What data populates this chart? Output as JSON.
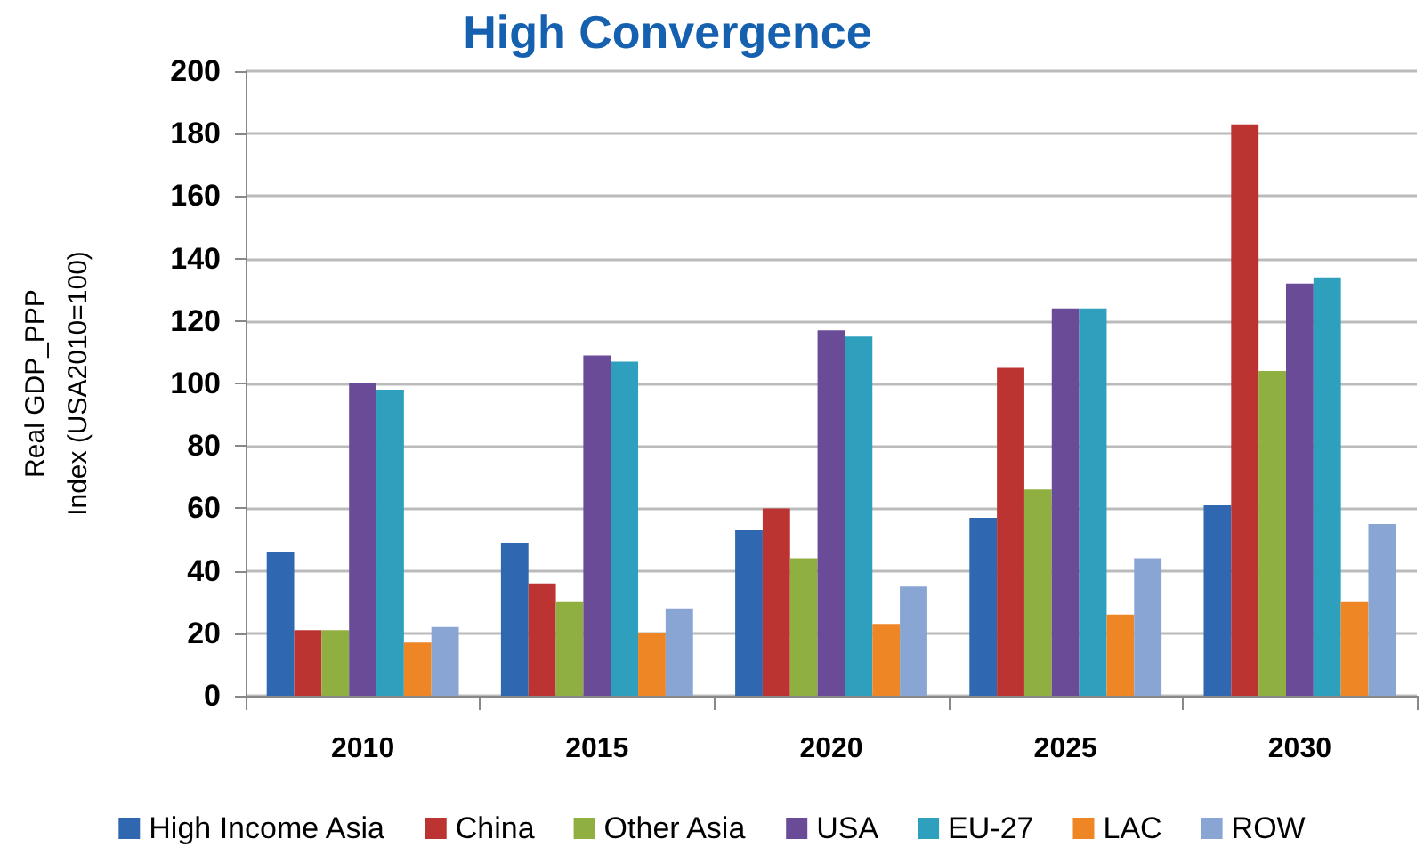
{
  "chart_data": {
    "type": "bar",
    "title": "High Convergence",
    "ylabel": "Real GDP_PPP\nIndex (USA2010=100)",
    "categories": [
      "2010",
      "2015",
      "2020",
      "2025",
      "2030"
    ],
    "series": [
      {
        "name": "High Income Asia",
        "color": "#2f67b0",
        "values": [
          46,
          49,
          53,
          57,
          61
        ]
      },
      {
        "name": "China",
        "color": "#bb3431",
        "values": [
          21,
          36,
          60,
          105,
          183
        ]
      },
      {
        "name": "Other Asia",
        "color": "#8fb040",
        "values": [
          21,
          30,
          44,
          66,
          104
        ]
      },
      {
        "name": "USA",
        "color": "#6a4b97",
        "values": [
          100,
          109,
          117,
          124,
          132
        ]
      },
      {
        "name": "EU-27",
        "color": "#2ea0be",
        "values": [
          98,
          107,
          115,
          124,
          134
        ]
      },
      {
        "name": "LAC",
        "color": "#ee8626",
        "values": [
          17,
          20,
          23,
          26,
          30
        ]
      },
      {
        "name": "ROW",
        "color": "#88a5d4",
        "values": [
          22,
          28,
          35,
          44,
          55
        ]
      }
    ],
    "ylim": [
      0,
      200
    ],
    "yticks": [
      0,
      20,
      40,
      60,
      80,
      100,
      120,
      140,
      160,
      180,
      200
    ],
    "grid": "y",
    "legend": "bottom"
  }
}
